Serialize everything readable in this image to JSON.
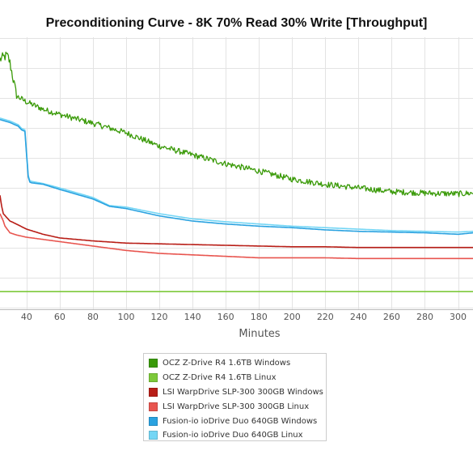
{
  "chart_data": {
    "type": "line",
    "title": "Preconditioning Curve - 8K 70% Read 30% Write [Throughput]",
    "xlabel": "Minutes",
    "ylabel": "",
    "xlim": [
      24,
      309
    ],
    "ylim": [
      0,
      370
    ],
    "x_ticks": [
      40,
      60,
      80,
      100,
      120,
      140,
      160,
      180,
      200,
      220,
      240,
      260,
      280,
      300
    ],
    "grid": true,
    "legend_position": "bottom",
    "series": [
      {
        "name": "OCZ Z-Drive R4 1.6TB Windows",
        "color": "#3a9a08",
        "noisy": true,
        "x": [
          24,
          28,
          29,
          30,
          34,
          40,
          50,
          60,
          80,
          100,
          120,
          140,
          160,
          180,
          200,
          220,
          240,
          260,
          280,
          300,
          309
        ],
        "y": [
          340,
          345,
          342,
          335,
          290,
          282,
          272,
          265,
          253,
          240,
          222,
          210,
          198,
          188,
          177,
          170,
          165,
          160,
          158,
          157,
          158
        ]
      },
      {
        "name": "OCZ Z-Drive R4 1.6TB Linux",
        "color": "#7dc93a",
        "noisy": false,
        "x": [
          24,
          309
        ],
        "y": [
          24,
          24
        ]
      },
      {
        "name": "LSI WarpDrive SLP-300 300GB Windows",
        "color": "#b81e17",
        "noisy": false,
        "x": [
          24,
          25,
          26,
          28,
          30,
          32,
          40,
          50,
          60,
          80,
          100,
          120,
          140,
          160,
          180,
          200,
          220,
          240,
          260,
          280,
          300,
          309
        ],
        "y": [
          155,
          140,
          130,
          125,
          120,
          118,
          109,
          102,
          97,
          93,
          90,
          89,
          88,
          87,
          86,
          85,
          85,
          84,
          84,
          84,
          84,
          84
        ]
      },
      {
        "name": "LSI WarpDrive SLP-300 300GB Linux",
        "color": "#e8554f",
        "noisy": false,
        "x": [
          24,
          26,
          27,
          28,
          30,
          34,
          40,
          50,
          60,
          80,
          100,
          120,
          140,
          160,
          180,
          200,
          220,
          240,
          260,
          280,
          300,
          309
        ],
        "y": [
          130,
          120,
          113,
          110,
          104,
          101,
          98,
          95,
          92,
          86,
          80,
          76,
          74,
          72,
          70,
          70,
          70,
          69,
          69,
          69,
          69,
          69
        ]
      },
      {
        "name": "Fusion-io ioDrive Duo 640GB Windows",
        "color": "#2aa2e0",
        "noisy": false,
        "x": [
          24,
          30,
          35,
          37,
          39,
          41,
          42,
          43,
          50,
          60,
          80,
          90,
          100,
          120,
          140,
          160,
          180,
          200,
          220,
          240,
          260,
          280,
          300,
          309
        ],
        "y": [
          258,
          254,
          249,
          244,
          242,
          180,
          173,
          172,
          170,
          163,
          150,
          140,
          137,
          127,
          120,
          116,
          113,
          111,
          108,
          106,
          105,
          104,
          102,
          104
        ]
      },
      {
        "name": "Fusion-io ioDrive Duo 640GB Linux",
        "color": "#74d6f5",
        "noisy": false,
        "x": [
          24,
          30,
          35,
          37,
          39,
          41,
          42,
          43,
          50,
          60,
          80,
          90,
          100,
          120,
          140,
          160,
          180,
          200,
          220,
          240,
          260,
          280,
          300,
          309
        ],
        "y": [
          260,
          256,
          251,
          246,
          244,
          182,
          175,
          174,
          171,
          165,
          152,
          141,
          139,
          130,
          123,
          119,
          116,
          113,
          111,
          109,
          107,
          106,
          105,
          106
        ]
      }
    ]
  }
}
